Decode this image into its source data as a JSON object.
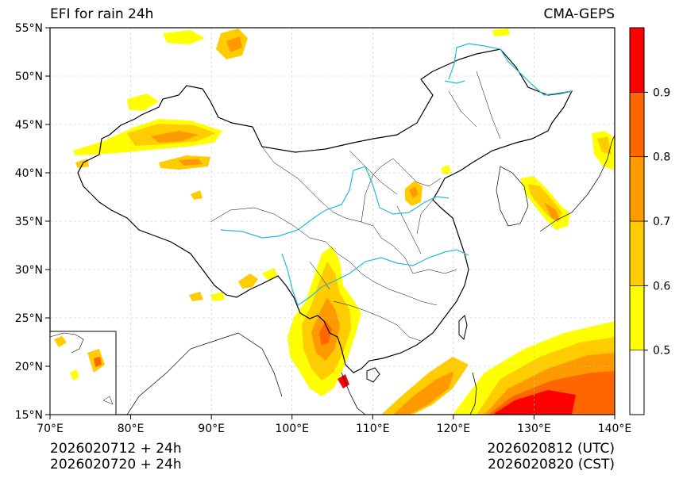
{
  "title_left": "EFI for rain 24h",
  "title_right": "CMA-GEPS",
  "map": {
    "lon_range": [
      70,
      140
    ],
    "lat_range": [
      15,
      55
    ],
    "lon_ticks": [
      {
        "value": 70,
        "label": "70°E"
      },
      {
        "value": 80,
        "label": "80°E"
      },
      {
        "value": 90,
        "label": "90°E"
      },
      {
        "value": 100,
        "label": "100°E"
      },
      {
        "value": 110,
        "label": "110°E"
      },
      {
        "value": 120,
        "label": "120°E"
      },
      {
        "value": 130,
        "label": "130°E"
      },
      {
        "value": 140,
        "label": "140°E"
      }
    ],
    "lat_ticks": [
      {
        "value": 15,
        "label": "15°N"
      },
      {
        "value": 20,
        "label": "20°N"
      },
      {
        "value": 25,
        "label": "25°N"
      },
      {
        "value": 30,
        "label": "30°N"
      },
      {
        "value": 35,
        "label": "35°N"
      },
      {
        "value": 40,
        "label": "40°N"
      },
      {
        "value": 45,
        "label": "45°N"
      },
      {
        "value": 50,
        "label": "50°N"
      },
      {
        "value": 55,
        "label": "55°N"
      }
    ],
    "grid": true,
    "colors": {
      "border": "#000000",
      "river": "#22bbdd",
      "grid": "#c8c8c8"
    }
  },
  "colorbar": {
    "levels": [
      0.4,
      0.5,
      0.6,
      0.7,
      0.8,
      0.9,
      1.0
    ],
    "colors": [
      "#ffffff",
      "#ffff00",
      "#ffcc00",
      "#ff9900",
      "#ff6600",
      "#ff0000"
    ],
    "tick_labels": [
      {
        "value": 0.5,
        "label": "0.5"
      },
      {
        "value": 0.6,
        "label": "0.6"
      },
      {
        "value": 0.7,
        "label": "0.7"
      },
      {
        "value": 0.8,
        "label": "0.8"
      },
      {
        "value": 0.9,
        "label": "0.9"
      }
    ]
  },
  "footer": {
    "init_utc": "2026020712 + 24h",
    "init_cst": "2026020720 + 24h",
    "valid_utc": "2026020812 (UTC)",
    "valid_cst": "2026020820 (CST)"
  }
}
